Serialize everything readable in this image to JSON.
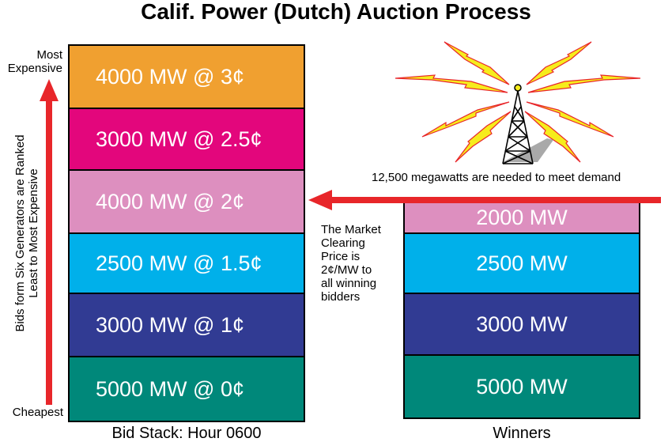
{
  "title": "Calif. Power (Dutch) Auction Process",
  "axis": {
    "top_label": "Most\nExpensive",
    "bottom_label": "Cheapest",
    "vertical_label": "Bids form Six Generators are Ranked\nLeast to Most Expensive"
  },
  "bid_stack": {
    "caption": "Bid Stack: Hour 0600",
    "blocks": [
      {
        "label": "4000 MW @ 3¢",
        "color": "#f0a030"
      },
      {
        "label": "3000 MW @ 2.5¢",
        "color": "#e3067c"
      },
      {
        "label": "4000 MW @ 2¢",
        "color": "#dd8fbf"
      },
      {
        "label": "2500 MW @ 1.5¢",
        "color": "#00b0ea"
      },
      {
        "label": "3000 MW @ 1¢",
        "color": "#313b93"
      },
      {
        "label": "5000 MW @ 0¢",
        "color": "#00887a"
      }
    ]
  },
  "winners": {
    "caption": "Winners",
    "blocks": [
      {
        "label": "2000 MW",
        "color": "#dd8fbf"
      },
      {
        "label": "2500 MW",
        "color": "#00b0ea"
      },
      {
        "label": "3000 MW",
        "color": "#313b93"
      },
      {
        "label": "5000 MW",
        "color": "#00887a"
      }
    ]
  },
  "demand_text": "12,500 megawatts are needed to meet demand",
  "clearing_text": "The Market\nClearing\nPrice is\n2¢/MW to\nall winning\nbidders",
  "colors": {
    "arrow_red": "#e8262a",
    "tower_yellow": "#f6ec1c",
    "tower_outline": "#e8262a"
  }
}
